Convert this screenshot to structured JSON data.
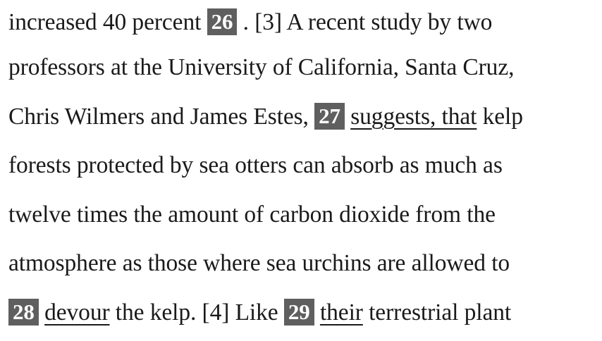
{
  "passage": {
    "lines": [
      {
        "t0": "increased 40 percent ",
        "q": "26",
        "t1": " . [3] A recent study by two"
      },
      {
        "t0": "professors at the University of California, Santa Cruz,"
      },
      {
        "t0": "Chris Wilmers and James Estes, ",
        "q": "27",
        "u": "suggests, that",
        "t1": " kelp"
      },
      {
        "t0": "forests protected by sea otters can absorb as much as"
      },
      {
        "t0": "twelve times the amount of carbon dioxide from the"
      },
      {
        "t0": "atmosphere as those where sea urchins are allowed to"
      },
      {
        "q": "28",
        "u": "devour",
        "t1": " the kelp. [4] Like ",
        "q2": "29",
        "u2": "their",
        "t2": " terrestrial plant"
      }
    ]
  }
}
